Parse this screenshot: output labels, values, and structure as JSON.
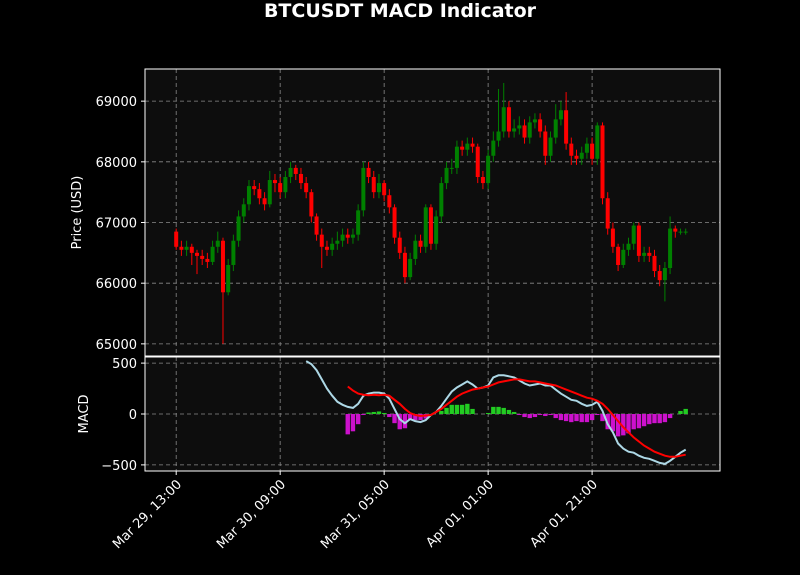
{
  "title": "BTCUSDT MACD Indicator",
  "chart_data": [
    {
      "type": "candlestick",
      "ylabel": "Price (USD)",
      "xlim": [
        -6,
        104.6
      ],
      "ylim": [
        64800,
        69530
      ],
      "yticks": [
        65000,
        66000,
        67000,
        68000,
        69000
      ],
      "grid": true,
      "up_color": "green",
      "down_color": "red",
      "open": [
        66850,
        66600,
        66550,
        66600,
        66500,
        66450,
        66400,
        66350,
        66600,
        66700,
        65850,
        66300,
        66700,
        67100,
        67300,
        67600,
        67550,
        67400,
        67300,
        67700,
        67650,
        67500,
        67750,
        67900,
        67800,
        67650,
        67500,
        67100,
        66800,
        66600,
        66550,
        66650,
        66700,
        66800,
        66750,
        66800,
        67200,
        67900,
        67750,
        67500,
        67650,
        67450,
        67250,
        66750,
        66500,
        66100,
        66400,
        66700,
        66600,
        67250,
        66650,
        67100,
        67650,
        67900,
        67900,
        68250,
        68200,
        68300,
        68250,
        67750,
        67650,
        68100,
        68350,
        68500,
        68900,
        68500,
        68550,
        68600,
        68400,
        68650,
        68700,
        68500,
        68100,
        68400,
        68700,
        68850,
        68300,
        68100,
        68050,
        68150,
        68300,
        68050,
        68600,
        67400,
        66900,
        66600,
        66300,
        66550,
        66650,
        66950,
        66450,
        66500,
        66450,
        66200,
        66050,
        66250,
        66900,
        66850,
        66850
      ],
      "high": [
        66900,
        66700,
        66700,
        66650,
        66550,
        66550,
        66500,
        66700,
        66850,
        66750,
        66400,
        66800,
        67200,
        67400,
        67700,
        67700,
        67650,
        67500,
        67850,
        67800,
        67750,
        67850,
        68000,
        67950,
        67900,
        67750,
        67550,
        67150,
        66900,
        66700,
        66750,
        66850,
        66900,
        66900,
        66900,
        67300,
        68000,
        68000,
        67850,
        67800,
        67700,
        67550,
        67300,
        66850,
        66600,
        66500,
        66800,
        66800,
        67300,
        67300,
        67200,
        67750,
        68000,
        68050,
        68350,
        68350,
        68400,
        68400,
        68300,
        67850,
        68200,
        68500,
        69200,
        69300,
        69000,
        68700,
        68750,
        68700,
        68750,
        68800,
        68800,
        68600,
        68500,
        68950,
        69000,
        69150,
        68400,
        68200,
        68250,
        68400,
        68400,
        68650,
        68650,
        67500,
        67000,
        66650,
        66650,
        66750,
        67000,
        67000,
        66600,
        66600,
        66550,
        66300,
        66350,
        67100,
        66950,
        66900,
        66900
      ],
      "low": [
        66550,
        66450,
        66450,
        66300,
        66150,
        66300,
        66250,
        66300,
        66500,
        65000,
        65800,
        66200,
        66600,
        67000,
        67200,
        67450,
        67300,
        67200,
        67250,
        67500,
        67400,
        67400,
        67650,
        67700,
        67550,
        67400,
        67000,
        66700,
        66250,
        66450,
        66450,
        66550,
        66600,
        66650,
        66650,
        66700,
        67100,
        67650,
        67400,
        67400,
        67350,
        67150,
        66650,
        66400,
        66000,
        66050,
        66300,
        66500,
        66500,
        66550,
        66550,
        67000,
        67550,
        67800,
        67800,
        68100,
        68100,
        68150,
        67650,
        67550,
        67550,
        68000,
        68250,
        68400,
        68400,
        68400,
        68450,
        68300,
        68300,
        68550,
        68400,
        67950,
        68000,
        68300,
        68600,
        68200,
        67950,
        67950,
        67950,
        68050,
        67950,
        67950,
        67300,
        66800,
        66500,
        66200,
        66250,
        66450,
        66550,
        66350,
        66350,
        66350,
        66100,
        65950,
        65700,
        66150,
        66750,
        66800,
        66800
      ],
      "close": [
        66600,
        66550,
        66600,
        66500,
        66450,
        66400,
        66350,
        66600,
        66700,
        65850,
        66300,
        66700,
        67100,
        67300,
        67600,
        67550,
        67400,
        67300,
        67700,
        67650,
        67500,
        67750,
        67900,
        67800,
        67650,
        67500,
        67100,
        66800,
        66600,
        66550,
        66650,
        66700,
        66800,
        66750,
        66800,
        67200,
        67900,
        67750,
        67500,
        67650,
        67450,
        67250,
        66750,
        66500,
        66100,
        66400,
        66700,
        66600,
        67250,
        66650,
        67100,
        67650,
        67900,
        67900,
        68250,
        68200,
        68300,
        68250,
        67750,
        67650,
        68100,
        68350,
        68500,
        68900,
        68500,
        68550,
        68600,
        68400,
        68650,
        68700,
        68500,
        68100,
        68400,
        68700,
        68850,
        68300,
        68100,
        68050,
        68150,
        68300,
        68050,
        68600,
        67400,
        66900,
        66600,
        66300,
        66550,
        66650,
        66950,
        66450,
        66500,
        66450,
        66200,
        66050,
        66250,
        66900,
        66850,
        66850,
        66850
      ]
    },
    {
      "type": "macd",
      "ylabel": "MACD",
      "xlim": [
        -6,
        104.6
      ],
      "ylim": [
        -560,
        560
      ],
      "yticks": [
        500,
        0,
        {
          "value": -500,
          "label": "−500"
        }
      ],
      "grid": true,
      "xticks": [
        {
          "value": 0,
          "label": "Mar 29, 13:00"
        },
        {
          "value": 20,
          "label": "Mar 30, 09:00"
        },
        {
          "value": 40,
          "label": "Mar 31, 05:00"
        },
        {
          "value": 60,
          "label": "Apr 01, 01:00"
        },
        {
          "value": 80,
          "label": "Apr 01, 21:00"
        }
      ],
      "series": [
        {
          "color": "#add8e6",
          "values": [
            null,
            null,
            null,
            null,
            null,
            null,
            null,
            null,
            null,
            null,
            null,
            null,
            null,
            null,
            null,
            null,
            null,
            null,
            null,
            null,
            null,
            null,
            null,
            null,
            null,
            520,
            490,
            430,
            340,
            250,
            180,
            120,
            90,
            70,
            60,
            100,
            180,
            200,
            210,
            210,
            200,
            150,
            50,
            -50,
            -90,
            -50,
            -70,
            -80,
            -60,
            -10,
            20,
            80,
            150,
            220,
            260,
            290,
            320,
            290,
            250,
            260,
            280,
            360,
            380,
            380,
            370,
            360,
            330,
            300,
            280,
            290,
            300,
            280,
            280,
            240,
            200,
            170,
            140,
            130,
            100,
            80,
            90,
            120,
            30,
            -100,
            -180,
            -290,
            -340,
            -370,
            -380,
            -410,
            -430,
            -440,
            -460,
            -480,
            -490,
            -460,
            -420,
            -380,
            -350
          ]
        },
        {
          "color": "red",
          "values": [
            null,
            null,
            null,
            null,
            null,
            null,
            null,
            null,
            null,
            null,
            null,
            null,
            null,
            null,
            null,
            null,
            null,
            null,
            null,
            null,
            null,
            null,
            null,
            null,
            null,
            null,
            null,
            null,
            null,
            null,
            null,
            null,
            null,
            270,
            230,
            200,
            190,
            185,
            190,
            185,
            190,
            180,
            140,
            100,
            50,
            10,
            -10,
            -20,
            -15,
            -10,
            20,
            50,
            90,
            130,
            170,
            200,
            220,
            240,
            250,
            260,
            270,
            290,
            310,
            320,
            330,
            340,
            340,
            330,
            320,
            320,
            310,
            300,
            290,
            280,
            260,
            240,
            220,
            200,
            180,
            160,
            150,
            130,
            100,
            50,
            -10,
            -70,
            -130,
            -180,
            -230,
            -270,
            -310,
            -340,
            -370,
            -390,
            -410,
            -420,
            -420,
            -410,
            -400
          ]
        }
      ],
      "histogram": {
        "up_color": "#22cc22",
        "down_color": "#cc11cc",
        "values": [
          null,
          null,
          null,
          null,
          null,
          null,
          null,
          null,
          null,
          null,
          null,
          null,
          null,
          null,
          null,
          null,
          null,
          null,
          null,
          null,
          null,
          null,
          null,
          null,
          null,
          null,
          null,
          null,
          null,
          null,
          null,
          null,
          null,
          -200,
          -170,
          -100,
          -10,
          15,
          20,
          25,
          10,
          -30,
          -90,
          -150,
          -140,
          -60,
          -60,
          -60,
          -45,
          0,
          0,
          30,
          60,
          90,
          90,
          90,
          100,
          50,
          0,
          0,
          10,
          70,
          70,
          60,
          40,
          20,
          -10,
          -30,
          -40,
          -30,
          -10,
          -20,
          -10,
          -40,
          -60,
          -70,
          -80,
          -70,
          -80,
          -80,
          -60,
          -10,
          -70,
          -150,
          -170,
          -220,
          -210,
          -190,
          -150,
          -140,
          -120,
          -100,
          -90,
          -90,
          -80,
          -40,
          0,
          30,
          50
        ]
      }
    }
  ]
}
